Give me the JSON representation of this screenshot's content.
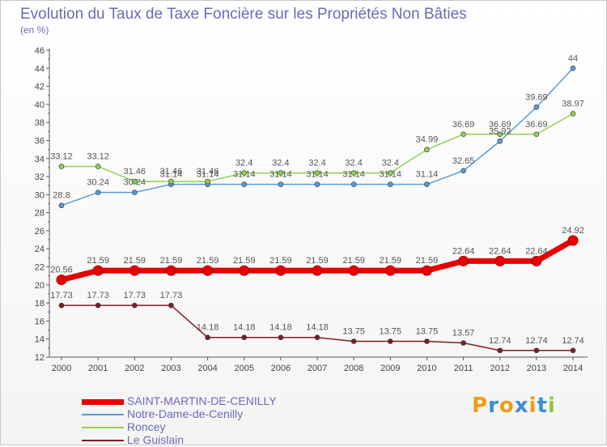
{
  "header": {
    "title": "Evolution du Taux de Taxe Foncière sur les Propriétés Non Bâties",
    "unit": "(en %)"
  },
  "brand": {
    "letters": [
      "P",
      "r",
      "o",
      "x",
      "i",
      "t",
      "i"
    ]
  },
  "colors": {
    "background": "#ffffff",
    "axis": "#555555",
    "title": "#6a6ab8",
    "brand": [
      "#f39c12",
      "#3a8ed8",
      "#f39c12",
      "#3a8ed8",
      "#f39c12",
      "#3a8ed8",
      "#8cc63f"
    ]
  },
  "chart_data": {
    "type": "line",
    "title": "Evolution du Taux de Taxe Foncière sur les Propriétés Non Bâties",
    "ylabel": "(en %)",
    "xlabel": "",
    "ylim": [
      12,
      46
    ],
    "yticks": [
      12,
      14,
      16,
      18,
      20,
      22,
      24,
      26,
      28,
      30,
      32,
      34,
      36,
      38,
      40,
      42,
      44,
      46
    ],
    "x": [
      "2000",
      "2001",
      "2002",
      "2003",
      "2004",
      "2005",
      "2006",
      "2007",
      "2008",
      "2009",
      "2010",
      "2011",
      "2012",
      "2013",
      "2014"
    ],
    "grid": false,
    "series": [
      {
        "name": "Notre-Dame-de-Cenilly",
        "color": "#5b9bd5",
        "values": [
          28.8,
          30.24,
          30.24,
          31.14,
          31.14,
          31.14,
          31.14,
          31.14,
          31.14,
          31.14,
          31.14,
          32.65,
          35.92,
          39.69,
          44
        ],
        "labels": [
          "28.8",
          "30.24",
          "30.24",
          "31.14",
          "31.14",
          "31.14",
          "31.14",
          "31.14",
          "31.14",
          "31.14",
          "31.14",
          "32.65",
          "35.92",
          "39.69",
          "44"
        ]
      },
      {
        "name": "Roncey",
        "color": "#8fd14f",
        "values": [
          33.12,
          33.12,
          31.46,
          31.46,
          31.46,
          32.4,
          32.4,
          32.4,
          32.4,
          32.4,
          34.99,
          36.69,
          36.69,
          36.69,
          38.97
        ],
        "labels": [
          "33.12",
          "33.12",
          "31.46",
          "31.46",
          "31.46",
          "32.4",
          "32.4",
          "32.4",
          "32.4",
          "32.4",
          "34.99",
          "36.69",
          "36.69",
          "36.69",
          "38.97"
        ]
      },
      {
        "name": "Le Guislain",
        "color": "#7b2020",
        "values": [
          17.73,
          17.73,
          17.73,
          17.73,
          14.18,
          14.18,
          14.18,
          14.18,
          13.75,
          13.75,
          13.75,
          13.57,
          12.74,
          12.74,
          12.74
        ],
        "labels": [
          "17.73",
          "17.73",
          "17.73",
          "17.73",
          "14.18",
          "14.18",
          "14.18",
          "14.18",
          "13.75",
          "13.75",
          "13.75",
          "13.57",
          "12.74",
          "12.74",
          "12.74"
        ]
      },
      {
        "name": "SAINT-MARTIN-DE-CENILLY",
        "color": "#e60000",
        "values": [
          20.56,
          21.59,
          21.59,
          21.59,
          21.59,
          21.59,
          21.59,
          21.59,
          21.59,
          21.59,
          21.59,
          22.64,
          22.64,
          22.64,
          24.92
        ],
        "labels": [
          "20.56",
          "21.59",
          "21.59",
          "21.59",
          "21.59",
          "21.59",
          "21.59",
          "21.59",
          "21.59",
          "21.59",
          "21.59",
          "22.64",
          "22.64",
          "22.64",
          "24.92"
        ]
      }
    ],
    "legend": {
      "position": "bottom-left",
      "entries": [
        "SAINT-MARTIN-DE-CENILLY",
        "Notre-Dame-de-Cenilly",
        "Roncey",
        "Le Guislain"
      ]
    }
  }
}
